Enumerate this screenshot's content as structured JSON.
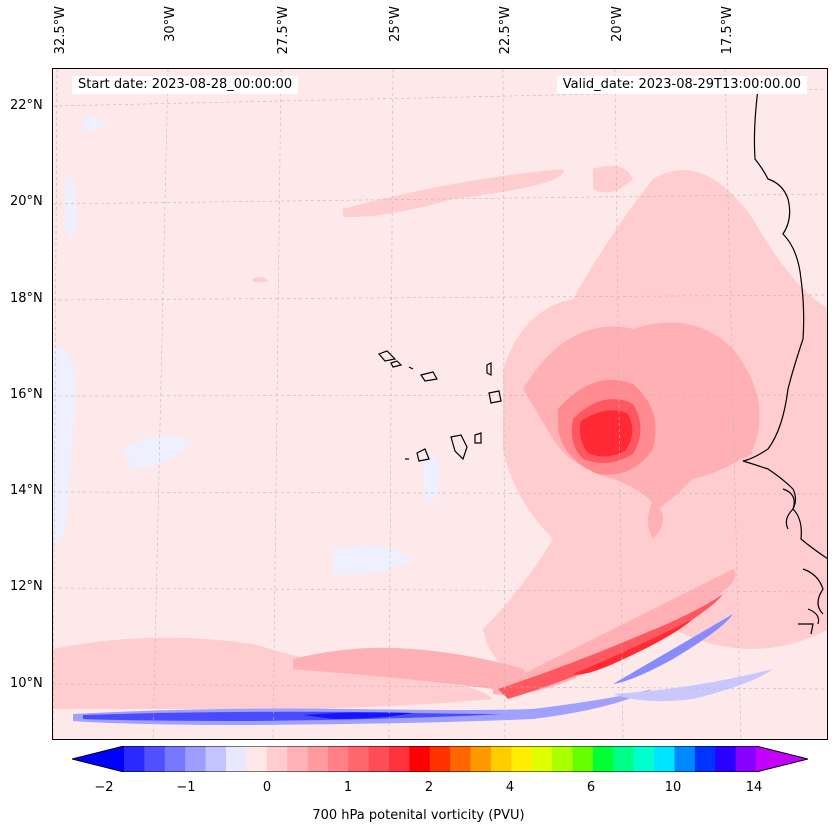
{
  "header": {
    "start_date": "Start date: 2023-08-28_00:00:00",
    "valid_date": "Valid_date: 2023-08-29T13:00:00.00"
  },
  "longitude_labels": [
    "32.5°W",
    "30°W",
    "27.5°W",
    "25°W",
    "22.5°W",
    "20°W",
    "17.5°W"
  ],
  "latitude_labels": [
    "22°N",
    "20°N",
    "18°N",
    "16°N",
    "14°N",
    "12°N",
    "10°N"
  ],
  "colorbar": {
    "title": "700 hPa potenital vorticity (PVU)",
    "tick_labels": [
      "−2",
      "−1",
      "0",
      "1",
      "2",
      "4",
      "6",
      "10",
      "14"
    ],
    "colors": [
      "#0000ff",
      "#2a2aff",
      "#5050ff",
      "#7777ff",
      "#9d9dff",
      "#c3c3ff",
      "#e8e8ff",
      "#ffe6e8",
      "#ffcccf",
      "#ffb3b7",
      "#ff9a9f",
      "#ff8086",
      "#ff666e",
      "#ff4d55",
      "#ff333d",
      "#ff0000",
      "#ff3300",
      "#ff6600",
      "#ff9900",
      "#ffcc00",
      "#ffee00",
      "#ddff00",
      "#aaff00",
      "#66ff00",
      "#00ff33",
      "#00ff88",
      "#00ffcc",
      "#00e5ff",
      "#0088ff",
      "#0033ff",
      "#2a00ff",
      "#8a00ff",
      "#c400ff"
    ]
  }
}
